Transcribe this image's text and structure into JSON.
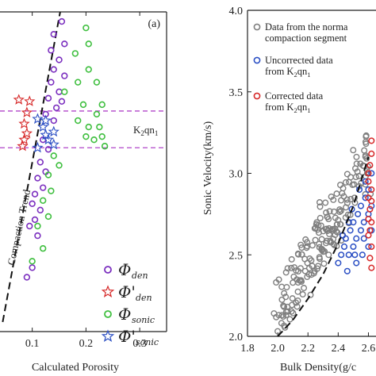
{
  "chart_data": [
    {
      "type": "scatter",
      "panel_label": "(a)",
      "xlabel": "Calculated Porosity",
      "xlim": [
        0.04,
        0.35
      ],
      "ylim": [
        0,
        1
      ],
      "xticks": [
        0.1,
        0.2,
        0.3
      ],
      "xtick_labels": [
        "0.1",
        "0.2",
        "0.3"
      ],
      "trend_label": "Compaction Trend",
      "trend_line": [
        [
          0.045,
          0.03
        ],
        [
          0.152,
          1.0
        ]
      ],
      "zone": {
        "label_main": "K",
        "label_sub1": "2",
        "label_mid": "qn",
        "label_sub2": "1",
        "y_top": 0.69,
        "y_bottom": 0.575
      },
      "legend": [
        {
          "symbol": "Φ",
          "sub": "den",
          "color": "#7b2fbf",
          "marker": "circle"
        },
        {
          "symbol": "Φ'",
          "sub": "den",
          "color": "#d62828",
          "marker": "star"
        },
        {
          "symbol": "Φ",
          "sub": "sonic",
          "color": "#3fbf3f",
          "marker": "circle"
        },
        {
          "symbol": "Φ'",
          "sub": "sonic",
          "color": "#2b4fc4",
          "marker": "star"
        }
      ],
      "series": [
        {
          "name": "den",
          "color": "#7b2fbf",
          "marker": "circle",
          "points": [
            [
              0.155,
              0.97
            ],
            [
              0.14,
              0.93
            ],
            [
              0.16,
              0.9
            ],
            [
              0.135,
              0.88
            ],
            [
              0.15,
              0.85
            ],
            [
              0.14,
              0.82
            ],
            [
              0.16,
              0.8
            ],
            [
              0.135,
              0.78
            ],
            [
              0.15,
              0.75
            ],
            [
              0.13,
              0.73
            ],
            [
              0.155,
              0.72
            ],
            [
              0.145,
              0.7
            ],
            [
              0.125,
              0.68
            ],
            [
              0.14,
              0.66
            ],
            [
              0.12,
              0.6
            ],
            [
              0.13,
              0.57
            ],
            [
              0.115,
              0.53
            ],
            [
              0.125,
              0.5
            ],
            [
              0.11,
              0.48
            ],
            [
              0.12,
              0.45
            ],
            [
              0.105,
              0.43
            ],
            [
              0.1,
              0.4
            ],
            [
              0.115,
              0.38
            ],
            [
              0.105,
              0.35
            ],
            [
              0.095,
              0.33
            ],
            [
              0.11,
              0.3
            ],
            [
              0.1,
              0.2
            ],
            [
              0.09,
              0.17
            ]
          ]
        },
        {
          "name": "den-corrected",
          "color": "#d62828",
          "marker": "star",
          "points": [
            [
              0.075,
              0.725
            ],
            [
              0.095,
              0.72
            ],
            [
              0.09,
              0.685
            ],
            [
              0.085,
              0.65
            ],
            [
              0.09,
              0.62
            ],
            [
              0.085,
              0.6
            ],
            [
              0.082,
              0.58
            ]
          ]
        },
        {
          "name": "sonic",
          "color": "#3fbf3f",
          "marker": "circle",
          "points": [
            [
              0.2,
              0.95
            ],
            [
              0.205,
              0.9
            ],
            [
              0.18,
              0.87
            ],
            [
              0.205,
              0.82
            ],
            [
              0.185,
              0.78
            ],
            [
              0.22,
              0.78
            ],
            [
              0.16,
              0.75
            ],
            [
              0.195,
              0.71
            ],
            [
              0.23,
              0.71
            ],
            [
              0.22,
              0.68
            ],
            [
              0.185,
              0.66
            ],
            [
              0.205,
              0.64
            ],
            [
              0.225,
              0.64
            ],
            [
              0.2,
              0.61
            ],
            [
              0.23,
              0.61
            ],
            [
              0.215,
              0.6
            ],
            [
              0.235,
              0.58
            ],
            [
              0.14,
              0.55
            ],
            [
              0.15,
              0.52
            ],
            [
              0.13,
              0.49
            ],
            [
              0.135,
              0.44
            ],
            [
              0.12,
              0.41
            ],
            [
              0.13,
              0.36
            ],
            [
              0.11,
              0.33
            ],
            [
              0.12,
              0.26
            ],
            [
              0.1,
              0.22
            ]
          ]
        },
        {
          "name": "sonic-corrected",
          "color": "#2b4fc4",
          "marker": "star",
          "points": [
            [
              0.11,
              0.665
            ],
            [
              0.125,
              0.66
            ],
            [
              0.12,
              0.64
            ],
            [
              0.14,
              0.625
            ],
            [
              0.125,
              0.615
            ],
            [
              0.13,
              0.6
            ],
            [
              0.14,
              0.585
            ],
            [
              0.11,
              0.575
            ]
          ]
        }
      ]
    },
    {
      "type": "scatter",
      "xlabel": "Bulk Density(g/c",
      "ylabel": "Sonic Velocity(km/s)",
      "xlim": [
        1.8,
        2.65
      ],
      "ylim": [
        2.0,
        4.0
      ],
      "xticks": [
        1.8,
        2.0,
        2.2,
        2.4,
        2.6
      ],
      "xtick_labels": [
        "1.8",
        "2.0",
        "2.2",
        "2.4",
        "2.6"
      ],
      "yticks": [
        2.0,
        2.5,
        3.0,
        3.5,
        4.0
      ],
      "ytick_labels": [
        "2.0",
        "2.5",
        "3.0",
        "3.5",
        "4.0"
      ],
      "legend": [
        {
          "line1": "Data from the norma",
          "line2": "compaction segment",
          "color": "#7f7f7f"
        },
        {
          "line1": "Uncorrected data",
          "line2": "from K",
          "sub1": "2",
          "mid": "qn",
          "sub2": "1",
          "color": "#2b4fc4"
        },
        {
          "line1": "Corrected data",
          "line2": "from K",
          "sub1": "2",
          "mid": "qn",
          "sub2": "1",
          "color": "#d62828"
        }
      ],
      "trend_line": [
        [
          2.0,
          2.0
        ],
        [
          2.1,
          2.1
        ],
        [
          2.2,
          2.23
        ],
        [
          2.3,
          2.38
        ],
        [
          2.4,
          2.57
        ],
        [
          2.5,
          2.8
        ],
        [
          2.6,
          3.1
        ]
      ],
      "series": [
        {
          "name": "normal compaction",
          "color": "#7f7f7f",
          "marker": "circle",
          "cluster": {
            "x_range": [
              2.0,
              2.62
            ],
            "center_slope": 1.55,
            "spread": 0.17,
            "count": 190,
            "seed": 7
          }
        },
        {
          "name": "uncorrected",
          "color": "#2b4fc4",
          "marker": "circle",
          "points": [
            [
              2.4,
              2.45
            ],
            [
              2.42,
              2.5
            ],
            [
              2.44,
              2.55
            ],
            [
              2.45,
              2.6
            ],
            [
              2.47,
              2.5
            ],
            [
              2.48,
              2.65
            ],
            [
              2.5,
              2.55
            ],
            [
              2.5,
              2.7
            ],
            [
              2.52,
              2.6
            ],
            [
              2.53,
              2.75
            ],
            [
              2.55,
              2.65
            ],
            [
              2.55,
              2.8
            ],
            [
              2.57,
              2.7
            ],
            [
              2.58,
              2.85
            ],
            [
              2.6,
              2.75
            ],
            [
              2.6,
              2.9
            ],
            [
              2.62,
              2.8
            ],
            [
              2.46,
              2.4
            ],
            [
              2.52,
              2.45
            ],
            [
              2.56,
              2.5
            ],
            [
              2.6,
              2.55
            ],
            [
              2.62,
              2.65
            ],
            [
              2.43,
              2.62
            ],
            [
              2.49,
              2.78
            ],
            [
              2.54,
              2.9
            ],
            [
              2.58,
              2.95
            ],
            [
              2.62,
              3.0
            ],
            [
              2.47,
              2.7
            ],
            [
              2.51,
              2.5
            ],
            [
              2.57,
              2.6
            ]
          ]
        },
        {
          "name": "corrected",
          "color": "#d62828",
          "marker": "circle",
          "points": [
            [
              2.6,
              2.95
            ],
            [
              2.61,
              3.05
            ],
            [
              2.62,
              3.12
            ],
            [
              2.6,
              2.85
            ],
            [
              2.62,
              2.9
            ],
            [
              2.61,
              2.78
            ],
            [
              2.62,
              2.7
            ],
            [
              2.6,
              2.62
            ],
            [
              2.62,
              2.55
            ],
            [
              2.61,
              2.48
            ],
            [
              2.62,
              2.42
            ],
            [
              2.6,
              3.0
            ],
            [
              2.62,
              3.2
            ],
            [
              2.61,
              2.65
            ],
            [
              2.6,
              2.72
            ],
            [
              2.62,
              2.83
            ]
          ]
        }
      ]
    }
  ]
}
